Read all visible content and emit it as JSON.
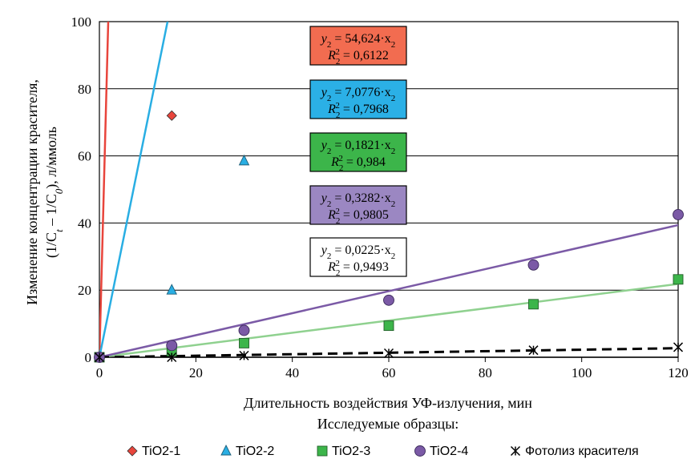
{
  "chart_data": {
    "type": "scatter",
    "xlabel": "Длительность воздействия УФ-излучения, мин",
    "ylabel_line1": "Изменение концентрации красителя,",
    "ylabel_line2": "(1/C",
    "ylabel_sub_t": "t",
    "ylabel_mid": " – 1/C",
    "ylabel_sub_0": "0",
    "ylabel_end": "), л/ммоль",
    "legend_title": "Исследуемые образцы:",
    "xlim": [
      0,
      120
    ],
    "ylim": [
      0,
      100
    ],
    "x_ticks": [
      "0",
      "20",
      "40",
      "60",
      "80",
      "100",
      "120"
    ],
    "y_ticks": [
      "0",
      "20",
      "40",
      "60",
      "80",
      "100"
    ],
    "series": [
      {
        "name": "TiO2-1",
        "marker": "diamond",
        "color": "#e8453c",
        "points": [
          [
            0,
            0
          ],
          [
            15,
            72
          ]
        ],
        "slope": 54.624,
        "equation_lhs": "y",
        "equation_sub": "2",
        "equation_rhs": " = 54,624·x",
        "r2_value": " = 0,6122",
        "label_fill": "#f26c50",
        "line_style": "solid"
      },
      {
        "name": "TiO2-2",
        "marker": "triangle",
        "color": "#29aee3",
        "points": [
          [
            0,
            0
          ],
          [
            15,
            20
          ],
          [
            30,
            58.5
          ]
        ],
        "slope": 7.0776,
        "equation_lhs": "y",
        "equation_sub": "2",
        "equation_rhs": " = 7,0776·x",
        "r2_value": " = 0,7968",
        "label_fill": "#2bb0e6",
        "line_style": "solid"
      },
      {
        "name": "TiO2-3",
        "marker": "square",
        "color": "#3cb54a",
        "points": [
          [
            0,
            0
          ],
          [
            15,
            1.8
          ],
          [
            30,
            4.2
          ],
          [
            60,
            9.4
          ],
          [
            90,
            15.8
          ],
          [
            120,
            23.2
          ]
        ],
        "slope": 0.1821,
        "equation_lhs": "y",
        "equation_sub": "2",
        "equation_rhs": " = 0,1821·x",
        "r2_value": " = 0,984",
        "label_fill": "#3cb54a",
        "line_style": "solid",
        "line_color": "#8fd18f"
      },
      {
        "name": "TiO2-4",
        "marker": "circle",
        "color": "#7b5aa6",
        "points": [
          [
            0,
            0
          ],
          [
            15,
            3.5
          ],
          [
            30,
            8
          ],
          [
            60,
            17
          ],
          [
            90,
            27.5
          ],
          [
            120,
            42.5
          ]
        ],
        "slope": 0.3282,
        "equation_lhs": "y",
        "equation_sub": "2",
        "equation_rhs": " = 0,3282·x",
        "r2_value": " = 0,9805",
        "label_fill": "#9b87c2",
        "line_style": "solid"
      },
      {
        "name": "Фотолиз красителя",
        "marker": "star",
        "color": "#000000",
        "points": [
          [
            0,
            0
          ],
          [
            15,
            0
          ],
          [
            30,
            0.5
          ],
          [
            60,
            1.2
          ],
          [
            90,
            2.1
          ],
          [
            120,
            3
          ]
        ],
        "slope": 0.0225,
        "equation_lhs": "y",
        "equation_sub": "2",
        "equation_rhs": " = 0,0225·x",
        "r2_value": " = 0,9493",
        "label_fill": "#ffffff",
        "line_style": "dashed"
      }
    ],
    "r2_lhs": "R",
    "r2_sub": "2",
    "r2_sup": "2",
    "x_sub": "2"
  }
}
